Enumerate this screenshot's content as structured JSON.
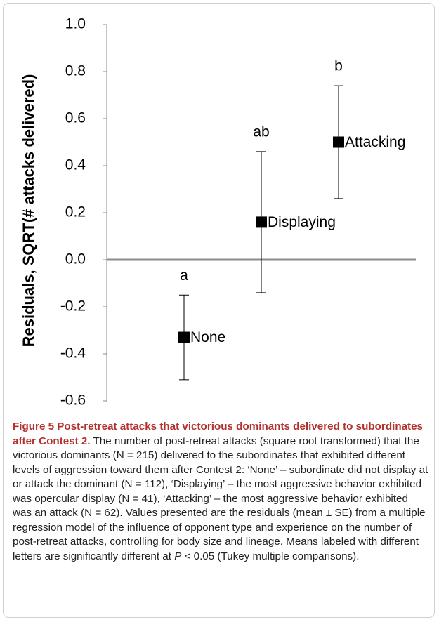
{
  "chart_data": {
    "type": "errorbar",
    "y_label": "Residuals, SQRT(# attacks delivered)",
    "categories": [
      "None",
      "Displaying",
      "Attacking"
    ],
    "values": [
      -0.33,
      0.16,
      0.5
    ],
    "errors": [
      0.18,
      0.3,
      0.24
    ],
    "annotations": [
      "a",
      "ab",
      "b"
    ],
    "color": "#000000",
    "zero_line_color": "#8c8c8c",
    "ylim": [
      -0.6,
      1.0
    ],
    "yticks": [
      {
        "value": -0.6,
        "label": "-0.6"
      },
      {
        "value": -0.4,
        "label": "-0.4"
      },
      {
        "value": -0.2,
        "label": "-0.2"
      },
      {
        "value": 0,
        "label": "0.0"
      },
      {
        "value": 0.2,
        "label": "0.2"
      },
      {
        "value": 0.4,
        "label": "0.4"
      },
      {
        "value": 0.6,
        "label": "0.6"
      },
      {
        "value": 0.8,
        "label": "0.8"
      },
      {
        "value": 1.0,
        "label": "1.0"
      }
    ]
  },
  "caption": {
    "title": "Figure 5 Post-retreat attacks that victorious dominants delivered to subordinates after Contest 2.",
    "body": " The number of post-retreat attacks (square root transformed) that the victorious dominants (N = 215) delivered to the subordinates that exhibited different levels of aggression toward them after Contest 2: ‘None’ – subordinate did not display at or attack the dominant (N = 112), ‘Displaying’ – the most aggressive behavior exhibited was opercular display (N = 41), ‘Attacking’ – the most aggressive behavior exhibited was an attack (N = 62). Values presented are the residuals (mean ± SE) from a multiple regression model of the influence of opponent type and experience on the number of post-retreat attacks, controlling for body size and lineage. Means labeled with different letters are significantly different at ",
    "italic": "P",
    "tail": " < 0.05 (Tukey multiple comparisons)."
  }
}
